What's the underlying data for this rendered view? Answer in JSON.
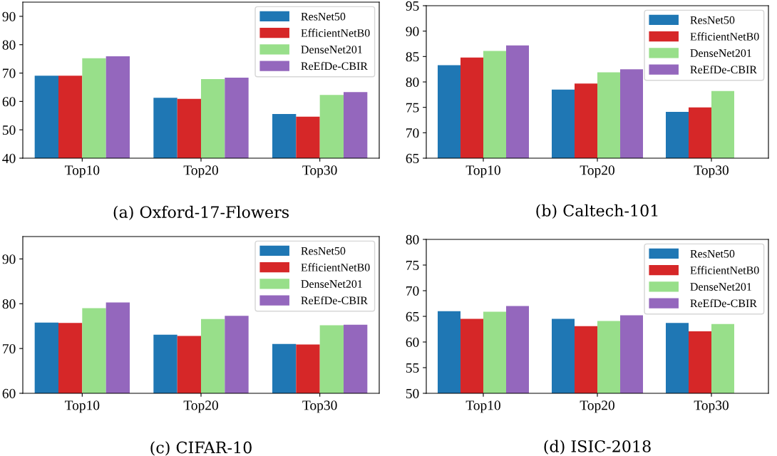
{
  "chart_data": [
    {
      "type": "bar",
      "title": "(a) Oxford-17-Flowers",
      "categories": [
        "Top10",
        "Top20",
        "Top30"
      ],
      "ylim": [
        40,
        95
      ],
      "yticks": [
        40,
        50,
        60,
        70,
        80,
        90
      ],
      "legend": "top right",
      "series": [
        {
          "name": "ResNet50",
          "color": "#1f77b4",
          "values": [
            69.1,
            61.3,
            55.6
          ]
        },
        {
          "name": "EfficientNetB0",
          "color": "#d62728",
          "values": [
            69.1,
            60.9,
            54.6
          ]
        },
        {
          "name": "DenseNet201",
          "color": "#98df8a",
          "values": [
            75.2,
            67.9,
            62.3
          ]
        },
        {
          "name": "ReEfDe-CBIR",
          "color": "#9467bd",
          "values": [
            75.9,
            68.4,
            63.3
          ]
        }
      ]
    },
    {
      "type": "bar",
      "title": "(b) Caltech-101",
      "categories": [
        "Top10",
        "Top20",
        "Top30"
      ],
      "ylim": [
        65,
        95
      ],
      "yticks": [
        65,
        70,
        75,
        80,
        85,
        90,
        95
      ],
      "legend": "top right",
      "series": [
        {
          "name": "ResNet50",
          "color": "#1f77b4",
          "values": [
            83.3,
            78.5,
            74.1
          ]
        },
        {
          "name": "EfficientNetB0",
          "color": "#d62728",
          "values": [
            84.8,
            79.7,
            75.0
          ]
        },
        {
          "name": "DenseNet201",
          "color": "#98df8a",
          "values": [
            86.1,
            81.9,
            78.2
          ]
        },
        {
          "name": "ReEfDe-CBIR",
          "color": "#9467bd",
          "values": [
            87.2,
            82.5,
            null
          ]
        }
      ]
    },
    {
      "type": "bar",
      "title": "(c) CIFAR-10",
      "categories": [
        "Top10",
        "Top20",
        "Top30"
      ],
      "ylim": [
        60,
        95
      ],
      "yticks": [
        60,
        70,
        80,
        90
      ],
      "legend": "top right",
      "series": [
        {
          "name": "ResNet50",
          "color": "#1f77b4",
          "values": [
            75.8,
            73.1,
            71.0
          ]
        },
        {
          "name": "EfficientNetB0",
          "color": "#d62728",
          "values": [
            75.7,
            72.8,
            70.9
          ]
        },
        {
          "name": "DenseNet201",
          "color": "#98df8a",
          "values": [
            79.0,
            76.6,
            75.2
          ]
        },
        {
          "name": "ReEfDe-CBIR",
          "color": "#9467bd",
          "values": [
            80.3,
            77.3,
            75.3
          ]
        }
      ]
    },
    {
      "type": "bar",
      "title": "(d) ISIC-2018",
      "categories": [
        "Top10",
        "Top20",
        "Top30"
      ],
      "ylim": [
        50,
        80
      ],
      "yticks": [
        50,
        55,
        60,
        65,
        70,
        75,
        80
      ],
      "legend": "top right",
      "series": [
        {
          "name": "ResNet50",
          "color": "#1f77b4",
          "values": [
            66.0,
            64.5,
            63.7
          ]
        },
        {
          "name": "EfficientNetB0",
          "color": "#d62728",
          "values": [
            64.5,
            63.1,
            62.1
          ]
        },
        {
          "name": "DenseNet201",
          "color": "#98df8a",
          "values": [
            65.9,
            64.1,
            63.5
          ]
        },
        {
          "name": "ReEfDe-CBIR",
          "color": "#9467bd",
          "values": [
            67.0,
            65.2,
            null
          ]
        }
      ]
    }
  ]
}
